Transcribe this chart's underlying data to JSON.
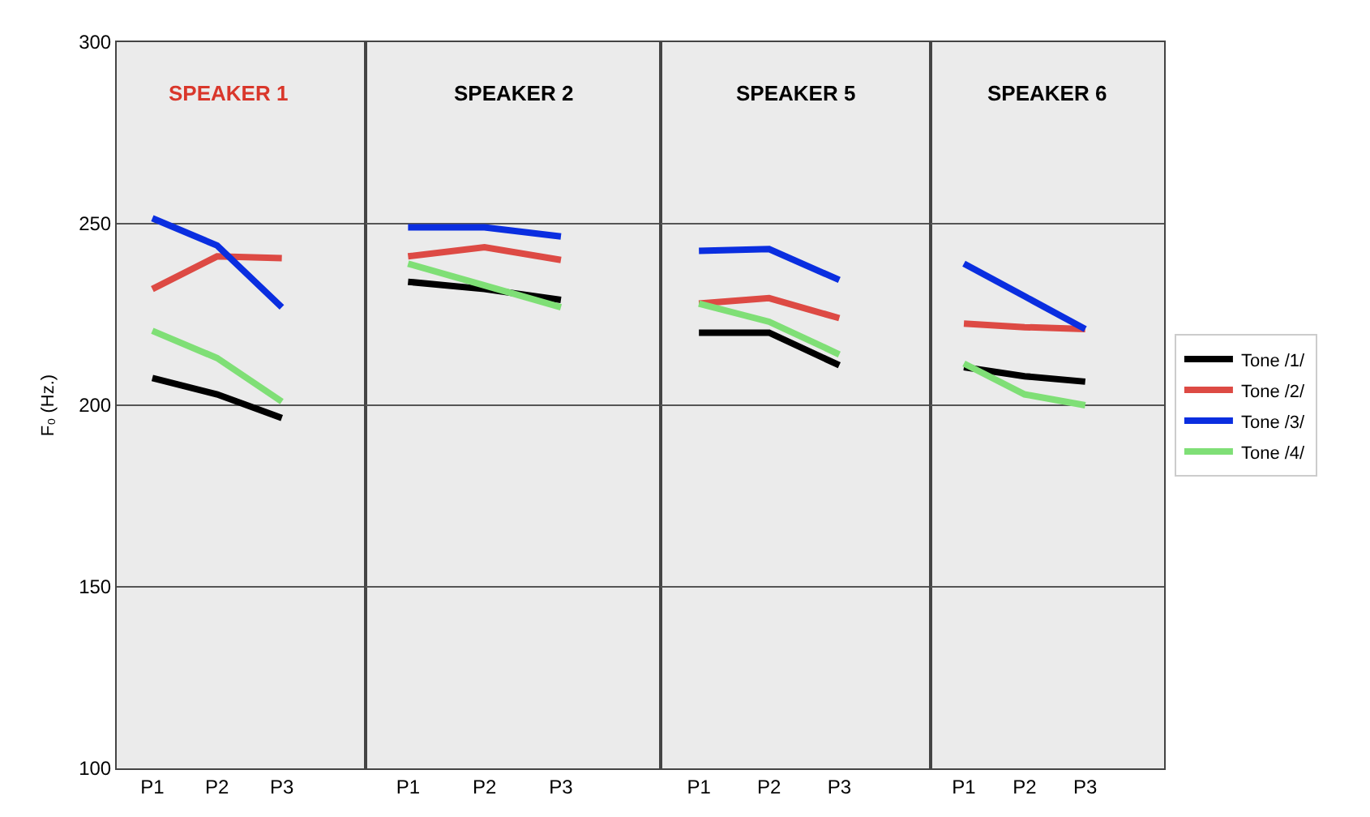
{
  "chart_data": [
    {
      "type": "line",
      "title": "SPEAKER 1",
      "ylabel": "F₀ (Hz.)",
      "categories": [
        "P1",
        "P2",
        "P3"
      ],
      "ylim": [
        100,
        300
      ],
      "yticks": [
        100,
        150,
        200,
        250,
        300
      ],
      "grid": "y",
      "legend": "right",
      "series": [
        {
          "name": "Tone /1/",
          "color": "#000000",
          "values": [
            207.5,
            203,
            196.5
          ]
        },
        {
          "name": "Tone /2/",
          "color": "#dd4a44",
          "values": [
            232,
            241,
            240.5
          ]
        },
        {
          "name": "Tone /3/",
          "color": "#0a2ee0",
          "values": [
            251.5,
            244,
            227
          ]
        },
        {
          "name": "Tone /4/",
          "color": "#7fdf76",
          "values": [
            220.5,
            213,
            201
          ]
        }
      ]
    },
    {
      "type": "line",
      "title": "SPEAKER 2",
      "categories": [
        "P1",
        "P2",
        "P3"
      ],
      "ylim": [
        100,
        300
      ],
      "yticks": [
        100,
        150,
        200,
        250,
        300
      ],
      "grid": "y",
      "tick_labels": "x",
      "series": [
        {
          "color": "#000000",
          "values": [
            234,
            232,
            229
          ]
        },
        {
          "color": "#dd4a44",
          "values": [
            241,
            243.5,
            240
          ]
        },
        {
          "color": "#0a2ee0",
          "values": [
            249,
            249,
            246.5
          ]
        },
        {
          "color": "#7fdf76",
          "values": [
            239,
            233,
            227
          ]
        }
      ]
    },
    {
      "type": "line",
      "title": "SPEAKER 5",
      "categories": [
        "P1",
        "P2",
        "P3"
      ],
      "ylim": [
        100,
        300
      ],
      "yticks": [
        100,
        150,
        200,
        250,
        300
      ],
      "grid": "y",
      "tick_labels": "x",
      "series": [
        {
          "color": "#000000",
          "values": [
            220,
            220,
            211
          ]
        },
        {
          "color": "#dd4a44",
          "values": [
            228,
            229.5,
            224
          ]
        },
        {
          "color": "#0a2ee0",
          "values": [
            242.5,
            243,
            234.5
          ]
        },
        {
          "color": "#7fdf76",
          "values": [
            228,
            223,
            214
          ]
        }
      ]
    },
    {
      "type": "line",
      "title": "SPEAKER 6",
      "categories": [
        "P1",
        "P2",
        "P3"
      ],
      "ylim": [
        100,
        300
      ],
      "yticks": [
        100,
        150,
        200,
        250,
        300
      ],
      "grid": "y",
      "tick_labels": "x",
      "series": [
        {
          "color": "#000000",
          "values": [
            210.5,
            208,
            206.5
          ]
        },
        {
          "color": "#dd4a44",
          "values": [
            222.5,
            221.5,
            221
          ]
        },
        {
          "color": "#0a2ee0",
          "values": [
            239,
            230,
            221
          ]
        },
        {
          "color": "#7fdf76",
          "values": [
            211.5,
            203,
            200
          ]
        }
      ]
    }
  ]
}
